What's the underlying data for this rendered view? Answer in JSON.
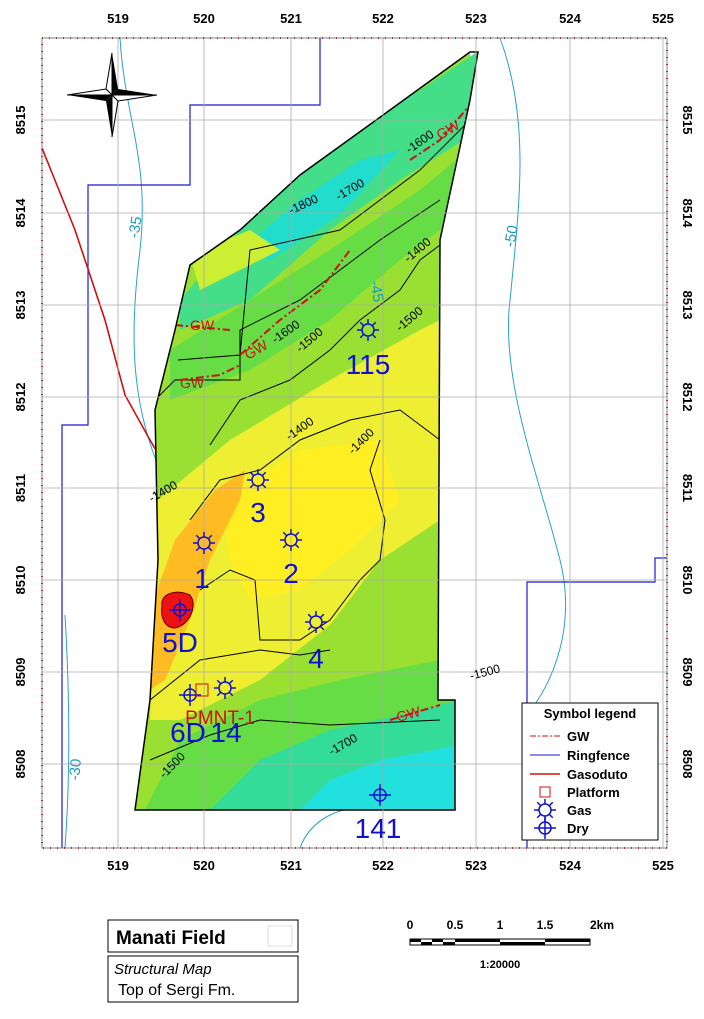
{
  "map": {
    "xticks": [
      519,
      520,
      521,
      522,
      523,
      524,
      525
    ],
    "yticks": [
      8508,
      8509,
      8510,
      8511,
      8512,
      8513,
      8514,
      8515
    ]
  },
  "contour_labels": [
    "-35",
    "-45",
    "-50",
    "-30",
    "-1800",
    "-1700",
    "-1600",
    "-1400",
    "-1600",
    "-1500",
    "-1500",
    "-1400",
    "-1400",
    "-1400",
    "-1500",
    "-1700",
    "-1500"
  ],
  "gw_labels": [
    "GW",
    "GW",
    "GW",
    "GW",
    "GW"
  ],
  "wells": [
    "115",
    "3",
    "2",
    "1",
    "4",
    "5D",
    "6D",
    "14",
    "141"
  ],
  "platform": "PMNT-1",
  "legend": {
    "title": "Symbol legend",
    "items": [
      "GW",
      "Ringfence",
      "Gasoduto",
      "Platform",
      "Gas",
      "Dry"
    ]
  },
  "title_box": {
    "title": "Manati Field",
    "subtitle": "Structural Map",
    "formation": "Top of Sergi Fm."
  },
  "scale": {
    "labels": [
      "0",
      "0.5",
      "1",
      "1.5",
      "2km"
    ],
    "ratio": "1:20000"
  }
}
